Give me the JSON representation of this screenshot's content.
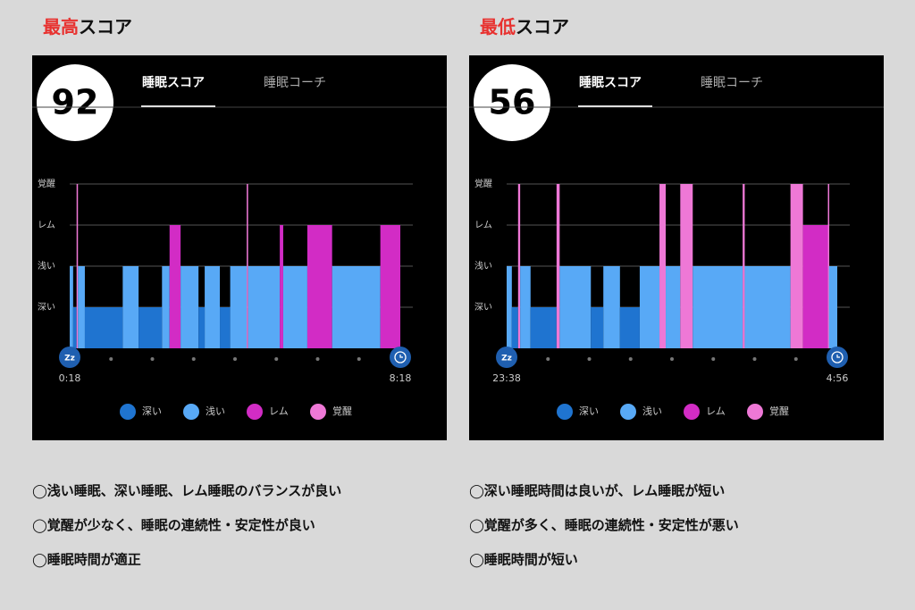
{
  "panels": [
    {
      "heading_highlight": "最高",
      "heading_rest": "スコア",
      "score": 92,
      "tabs": [
        "睡眠スコア",
        "睡眠コーチ"
      ],
      "notes": [
        "◯浅い睡眠、深い睡眠、レム睡眠のバランスが良い",
        "◯覚醒が少なく、睡眠の連続性・安定性が良い",
        "◯睡眠時間が適正"
      ]
    },
    {
      "heading_highlight": "最低",
      "heading_rest": "スコア",
      "score": 56,
      "tabs": [
        "睡眠スコア",
        "睡眠コーチ"
      ],
      "notes": [
        "◯深い睡眠時間は良いが、レム睡眠が短い",
        "◯覚醒が多く、睡眠の連続性・安定性が悪い",
        "◯睡眠時間が短い"
      ]
    }
  ],
  "chart_data": [
    {
      "type": "hypnogram",
      "start_icon_text": "Zz",
      "start_label": "0:18",
      "end_label": "8:18",
      "xlim": [
        0,
        480
      ],
      "levels": [
        {
          "name": "深い",
          "color": "#1f74d0"
        },
        {
          "name": "浅い",
          "color": "#58a9f6"
        },
        {
          "name": "レム",
          "color": "#d22cc5"
        },
        {
          "name": "覚醒",
          "color": "#ee78d6"
        }
      ],
      "segments": [
        {
          "stage": 1,
          "start": 0,
          "end": 5
        },
        {
          "stage": 0,
          "start": 5,
          "end": 10
        },
        {
          "stage": 3,
          "start": 10,
          "end": 12
        },
        {
          "stage": 1,
          "start": 12,
          "end": 22
        },
        {
          "stage": 0,
          "start": 22,
          "end": 77
        },
        {
          "stage": 1,
          "start": 77,
          "end": 100
        },
        {
          "stage": 0,
          "start": 100,
          "end": 134
        },
        {
          "stage": 1,
          "start": 134,
          "end": 145
        },
        {
          "stage": 2,
          "start": 145,
          "end": 161
        },
        {
          "stage": 1,
          "start": 161,
          "end": 187
        },
        {
          "stage": 0,
          "start": 187,
          "end": 196
        },
        {
          "stage": 1,
          "start": 196,
          "end": 218
        },
        {
          "stage": 0,
          "start": 218,
          "end": 233
        },
        {
          "stage": 1,
          "start": 233,
          "end": 257
        },
        {
          "stage": 3,
          "start": 257,
          "end": 259
        },
        {
          "stage": 1,
          "start": 259,
          "end": 305
        },
        {
          "stage": 2,
          "start": 305,
          "end": 310
        },
        {
          "stage": 1,
          "start": 310,
          "end": 345
        },
        {
          "stage": 2,
          "start": 345,
          "end": 381
        },
        {
          "stage": 1,
          "start": 381,
          "end": 451
        },
        {
          "stage": 2,
          "start": 451,
          "end": 480
        }
      ]
    },
    {
      "type": "hypnogram",
      "start_icon_text": "Zz",
      "start_label": "23:38",
      "end_label": "4:56",
      "xlim": [
        0,
        318
      ],
      "levels": [
        {
          "name": "深い",
          "color": "#1f74d0"
        },
        {
          "name": "浅い",
          "color": "#58a9f6"
        },
        {
          "name": "レム",
          "color": "#d22cc5"
        },
        {
          "name": "覚醒",
          "color": "#ee78d6"
        }
      ],
      "segments": [
        {
          "stage": 1,
          "start": 0,
          "end": 5
        },
        {
          "stage": 0,
          "start": 5,
          "end": 11
        },
        {
          "stage": 3,
          "start": 11,
          "end": 13
        },
        {
          "stage": 1,
          "start": 13,
          "end": 23
        },
        {
          "stage": 0,
          "start": 23,
          "end": 48
        },
        {
          "stage": 3,
          "start": 48,
          "end": 51
        },
        {
          "stage": 1,
          "start": 51,
          "end": 81
        },
        {
          "stage": 0,
          "start": 81,
          "end": 93
        },
        {
          "stage": 1,
          "start": 93,
          "end": 109
        },
        {
          "stage": 0,
          "start": 109,
          "end": 128
        },
        {
          "stage": 1,
          "start": 128,
          "end": 147
        },
        {
          "stage": 3,
          "start": 147,
          "end": 153
        },
        {
          "stage": 1,
          "start": 153,
          "end": 167
        },
        {
          "stage": 3,
          "start": 167,
          "end": 179
        },
        {
          "stage": 1,
          "start": 179,
          "end": 227
        },
        {
          "stage": 3,
          "start": 227,
          "end": 229
        },
        {
          "stage": 1,
          "start": 229,
          "end": 273
        },
        {
          "stage": 3,
          "start": 273,
          "end": 285
        },
        {
          "stage": 2,
          "start": 285,
          "end": 309
        },
        {
          "stage": 3,
          "start": 309,
          "end": 310
        },
        {
          "stage": 1,
          "start": 310,
          "end": 318
        }
      ]
    }
  ]
}
